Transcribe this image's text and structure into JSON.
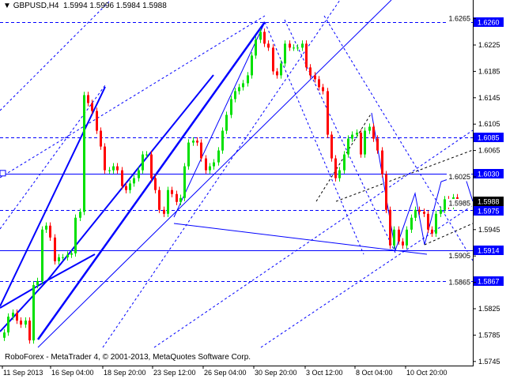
{
  "header": {
    "symbol": "GBPUSD,H4",
    "open": "1.5994",
    "high": "1.5996",
    "low": "1.5984",
    "close": "1.5988"
  },
  "copyright": "RoboForex - MetaTrader 4, © 2001-2013, MetaQuotes Software Corp.",
  "colors": {
    "bull": "#00e000",
    "bear": "#ff0000",
    "lines": "#0000ff",
    "label_bg": "#0000ff",
    "last_price_bg": "#000000"
  },
  "chart_data": {
    "type": "candlestick",
    "ylim": [
      1.5735,
      1.6298
    ],
    "y_ticks": [
      "1.6265",
      "1.6225",
      "1.6185",
      "1.6145",
      "1.6105",
      "1.6065",
      "1.6025",
      "1.5985",
      "1.5945",
      "1.5905",
      "1.5865",
      "1.5825",
      "1.5785",
      "1.5745"
    ],
    "x_ticks": [
      "11 Sep 2013",
      "16 Sep 04:00",
      "18 Sep 20:00",
      "23 Sep 12:00",
      "26 Sep 04:00",
      "30 Sep 20:00",
      "3 Oct 12:00",
      "8 Oct 04:00",
      "10 Oct 20:00"
    ],
    "closes": [
      1.5789,
      1.5813,
      1.5819,
      1.5807,
      1.5801,
      1.5807,
      1.5777,
      1.5861,
      1.5867,
      1.5945,
      1.5951,
      1.5933,
      1.5897,
      1.5903,
      1.5903,
      1.5907,
      1.5909,
      1.5963,
      1.5972,
      1.6149,
      1.6137,
      1.6125,
      1.6095,
      1.6071,
      1.6035,
      1.6035,
      1.6041,
      1.6035,
      1.6011,
      1.6005,
      1.6015,
      1.6023,
      1.6035,
      1.6059,
      1.6059,
      1.6023,
      1.6005,
      1.5975,
      1.5969,
      1.6005,
      1.5999,
      1.5987,
      1.5993,
      1.6041,
      1.6077,
      1.608,
      1.6077,
      1.6053,
      1.6035,
      1.6041,
      1.6047,
      1.6065,
      1.6095,
      1.6119,
      1.6143,
      1.6155,
      1.6161,
      1.6167,
      1.6179,
      1.6209,
      1.6233,
      1.6245,
      1.6227,
      1.6221,
      1.6185,
      1.6179,
      1.6197,
      1.6227,
      1.6221,
      1.6221,
      1.6221,
      1.6227,
      1.6191,
      1.6179,
      1.6173,
      1.6161,
      1.6155,
      1.6089,
      1.6053,
      1.6023,
      1.6035,
      1.6059,
      1.6083,
      1.6089,
      1.6092,
      1.6059,
      1.6095,
      1.6101,
      1.6083,
      1.6065,
      1.6029,
      1.5975,
      1.5921,
      1.5945,
      1.5927,
      1.5921,
      1.5945,
      1.5963,
      1.5975,
      1.5972,
      1.5969,
      1.5945,
      1.5939,
      1.5969,
      1.5975,
      1.5991,
      1.5981,
      1.5994,
      1.5988
    ],
    "levels": [
      {
        "price": 1.626,
        "label": "1.6260",
        "style": "dashed"
      },
      {
        "price": 1.6085,
        "label": "1.6085",
        "style": "dashed"
      },
      {
        "price": 1.603,
        "label": "1.6030",
        "style": "solid"
      },
      {
        "price": 1.5975,
        "label": "1.5975",
        "style": "dashed"
      },
      {
        "price": 1.5914,
        "label": "1.5914",
        "style": "solid"
      },
      {
        "price": 1.5867,
        "label": "1.5867",
        "style": "dashed"
      }
    ],
    "last_price": "1.5988"
  }
}
